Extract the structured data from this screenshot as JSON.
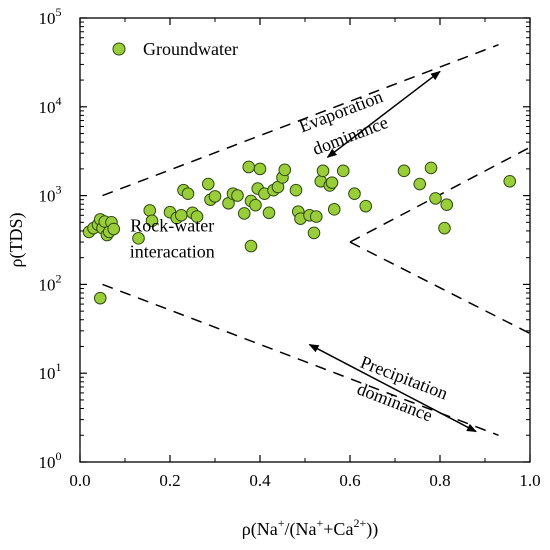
{
  "chart_data": {
    "type": "scatter",
    "title": "",
    "xlabel": "ρ(Na⁺/(Na⁺+Ca²⁺))",
    "xlabel_parts": [
      "ρ(Na",
      "+",
      "/(Na",
      "+",
      "+Ca",
      "2+",
      "))"
    ],
    "ylabel": "ρ(TDS)",
    "xlim": [
      0.0,
      1.0
    ],
    "ylim": [
      1,
      100000
    ],
    "y_scale": "log",
    "grid": false,
    "legend_position": "top-left",
    "x_ticks": [
      "0.0",
      "0.2",
      "0.4",
      "0.6",
      "0.8",
      "1.0"
    ],
    "y_ticks": [
      {
        "base": "10",
        "exp": "0"
      },
      {
        "base": "10",
        "exp": "1"
      },
      {
        "base": "10",
        "exp": "2"
      },
      {
        "base": "10",
        "exp": "3"
      },
      {
        "base": "10",
        "exp": "4"
      },
      {
        "base": "10",
        "exp": "5"
      }
    ],
    "series": [
      {
        "name": "Groundwater",
        "color": "#9acd3a",
        "edge_color": "#2d4a0e",
        "points": [
          [
            0.02,
            390
          ],
          [
            0.03,
            430
          ],
          [
            0.04,
            470
          ],
          [
            0.045,
            540
          ],
          [
            0.05,
            430
          ],
          [
            0.055,
            510
          ],
          [
            0.06,
            360
          ],
          [
            0.065,
            390
          ],
          [
            0.07,
            500
          ],
          [
            0.075,
            420
          ],
          [
            0.045,
            70
          ],
          [
            0.13,
            330
          ],
          [
            0.155,
            680
          ],
          [
            0.16,
            520
          ],
          [
            0.2,
            650
          ],
          [
            0.215,
            560
          ],
          [
            0.225,
            600
          ],
          [
            0.23,
            1150
          ],
          [
            0.24,
            1050
          ],
          [
            0.25,
            640
          ],
          [
            0.26,
            580
          ],
          [
            0.285,
            1350
          ],
          [
            0.29,
            900
          ],
          [
            0.3,
            980
          ],
          [
            0.33,
            820
          ],
          [
            0.34,
            1050
          ],
          [
            0.35,
            1000
          ],
          [
            0.365,
            630
          ],
          [
            0.375,
            2100
          ],
          [
            0.38,
            270
          ],
          [
            0.38,
            870
          ],
          [
            0.39,
            780
          ],
          [
            0.395,
            1200
          ],
          [
            0.4,
            2000
          ],
          [
            0.41,
            1050
          ],
          [
            0.42,
            640
          ],
          [
            0.43,
            1150
          ],
          [
            0.44,
            1250
          ],
          [
            0.45,
            1600
          ],
          [
            0.455,
            1950
          ],
          [
            0.48,
            1150
          ],
          [
            0.485,
            660
          ],
          [
            0.49,
            550
          ],
          [
            0.51,
            600
          ],
          [
            0.52,
            380
          ],
          [
            0.525,
            580
          ],
          [
            0.535,
            1450
          ],
          [
            0.54,
            1900
          ],
          [
            0.555,
            1300
          ],
          [
            0.56,
            1400
          ],
          [
            0.565,
            700
          ],
          [
            0.585,
            1900
          ],
          [
            0.61,
            1050
          ],
          [
            0.635,
            760
          ],
          [
            0.72,
            1900
          ],
          [
            0.755,
            1350
          ],
          [
            0.78,
            2050
          ],
          [
            0.79,
            930
          ],
          [
            0.81,
            430
          ],
          [
            0.815,
            790
          ],
          [
            0.955,
            1450
          ]
        ]
      }
    ],
    "boundaries": [
      {
        "name": "upper-boundary",
        "points": [
          [
            0.05,
            1000
          ],
          [
            0.93,
            50000
          ]
        ]
      },
      {
        "name": "lower-boundary",
        "points": [
          [
            0.05,
            100
          ],
          [
            0.93,
            2
          ]
        ]
      },
      {
        "name": "right-upper-boundary",
        "points": [
          [
            0.6,
            300
          ],
          [
            1.0,
            3500
          ]
        ]
      },
      {
        "name": "right-lower-boundary",
        "points": [
          [
            0.6,
            300
          ],
          [
            1.0,
            28
          ]
        ]
      }
    ],
    "arrows": [
      {
        "name": "evaporation-arrow",
        "from": [
          0.55,
          2700
        ],
        "to": [
          0.8,
          25000
        ]
      },
      {
        "name": "precipitation-arrow",
        "from": [
          0.51,
          21
        ],
        "to": [
          0.88,
          2.2
        ]
      }
    ],
    "annotations": [
      {
        "name": "evaporation-label",
        "lines": [
          "Evaporation",
          "dominance"
        ],
        "x": 0.59,
        "y": 6500,
        "rotate": -21
      },
      {
        "name": "rock-water-label",
        "lines": [
          "Rock-water",
          "interacation"
        ],
        "x": 0.205,
        "y": 330,
        "rotate": 0
      },
      {
        "name": "precipitation-label",
        "lines": [
          "Precipitation",
          "dominance"
        ],
        "x": 0.71,
        "y": 6.5,
        "rotate": 21
      }
    ]
  }
}
